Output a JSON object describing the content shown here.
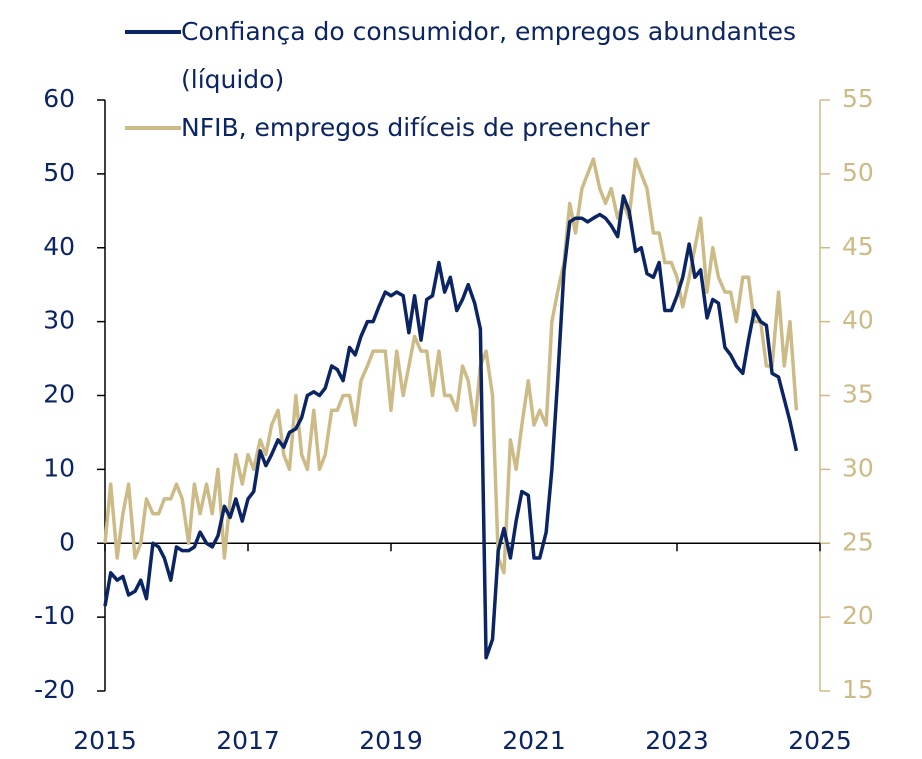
{
  "chart_data": {
    "type": "line",
    "x": [
      2015,
      2015.08,
      2015.17,
      2015.25,
      2015.33,
      2015.42,
      2015.5,
      2015.58,
      2015.67,
      2015.75,
      2015.83,
      2015.92,
      2016,
      2016.08,
      2016.17,
      2016.25,
      2016.33,
      2016.42,
      2016.5,
      2016.58,
      2016.67,
      2016.75,
      2016.83,
      2016.92,
      2017,
      2017.08,
      2017.17,
      2017.25,
      2017.33,
      2017.42,
      2017.5,
      2017.58,
      2017.67,
      2017.75,
      2017.83,
      2017.92,
      2018,
      2018.08,
      2018.17,
      2018.25,
      2018.33,
      2018.42,
      2018.5,
      2018.58,
      2018.67,
      2018.75,
      2018.83,
      2018.92,
      2019,
      2019.08,
      2019.17,
      2019.25,
      2019.33,
      2019.42,
      2019.5,
      2019.58,
      2019.67,
      2019.75,
      2019.83,
      2019.92,
      2020,
      2020.08,
      2020.17,
      2020.25,
      2020.33,
      2020.42,
      2020.5,
      2020.58,
      2020.67,
      2020.75,
      2020.83,
      2020.92,
      2021,
      2021.08,
      2021.17,
      2021.25,
      2021.33,
      2021.42,
      2021.5,
      2021.58,
      2021.67,
      2021.75,
      2021.83,
      2021.92,
      2022,
      2022.08,
      2022.17,
      2022.25,
      2022.33,
      2022.42,
      2022.5,
      2022.58,
      2022.67,
      2022.75,
      2022.83,
      2022.92,
      2023,
      2023.08,
      2023.17,
      2023.25,
      2023.33,
      2023.42,
      2023.5,
      2023.58,
      2023.67,
      2023.75,
      2023.83,
      2023.92,
      2024,
      2024.08,
      2024.17,
      2024.25,
      2024.33,
      2024.42,
      2024.5,
      2024.58,
      2024.67
    ],
    "series": [
      {
        "name": "Confiança do consumidor, empregos abundantes (líquido)",
        "color": "#0b2463",
        "axis": "y",
        "values": [
          -8.5,
          -4,
          -5,
          -4.5,
          -7,
          -6.5,
          -5,
          -7.5,
          0,
          -0.5,
          -2,
          -5,
          -0.5,
          -1,
          -1,
          -0.5,
          1.5,
          0,
          -0.5,
          1,
          5,
          3.5,
          6,
          3,
          6,
          7,
          12.5,
          10.5,
          12,
          14,
          13,
          15,
          15.5,
          17,
          20,
          20.5,
          20,
          21,
          24,
          23.5,
          22,
          26.5,
          25.5,
          28,
          30,
          30,
          32,
          34,
          33.5,
          34,
          33.5,
          28.5,
          33.5,
          27.5,
          33,
          33.5,
          38,
          34,
          36,
          31.5,
          33,
          35,
          32.5,
          29,
          -15.5,
          -13,
          -1,
          2,
          -2,
          3,
          7,
          6.5,
          -2,
          -2,
          1.5,
          10,
          22,
          37,
          43.5,
          44,
          44,
          43.5,
          44,
          44.5,
          44,
          43,
          41.5,
          47,
          45,
          39.5,
          40,
          36.5,
          36,
          38,
          31.5,
          31.5,
          33.5,
          36,
          40.5,
          36,
          37,
          30.5,
          33,
          32.5,
          26.5,
          25.5,
          24,
          23,
          27.5,
          31.5,
          30,
          29.5,
          23,
          22.5,
          19.5,
          16.5,
          12.5
        ]
      },
      {
        "name": "NFIB, empregos difíceis de preencher",
        "color": "#cdbb87",
        "axis": "y2",
        "values": [
          25,
          29,
          24,
          27,
          29,
          24,
          25,
          28,
          27,
          27,
          28,
          28,
          29,
          28,
          25,
          29,
          27,
          29,
          27,
          30,
          24,
          28,
          31,
          29,
          31,
          30,
          32,
          31,
          33,
          34,
          31,
          30,
          35,
          31,
          30,
          34,
          30,
          31,
          34,
          34,
          35,
          35,
          33,
          36,
          37,
          38,
          38,
          38,
          34,
          38,
          35,
          37,
          39,
          38,
          38,
          35,
          38,
          35,
          35,
          34,
          37,
          36,
          33,
          37,
          38,
          35,
          24,
          23,
          32,
          30,
          33,
          36,
          33,
          34,
          33,
          40,
          42,
          44,
          48,
          46,
          49,
          50,
          51,
          49,
          48,
          49,
          47,
          48,
          47,
          51,
          50,
          49,
          46,
          46,
          44,
          44,
          43,
          41,
          43,
          45,
          47,
          42,
          45,
          43,
          42,
          42,
          40,
          43,
          43,
          40,
          40,
          37,
          37,
          42,
          37,
          40,
          34
        ]
      }
    ],
    "xlim": [
      2015,
      2025
    ],
    "xticks": [
      2015,
      2017,
      2019,
      2021,
      2023,
      2025
    ],
    "ylim": [
      -20,
      60
    ],
    "yticks": [
      -20,
      -10,
      0,
      10,
      20,
      30,
      40,
      50,
      60
    ],
    "y2lim": [
      15,
      55
    ],
    "y2ticks": [
      15,
      20,
      25,
      30,
      35,
      40,
      45,
      50,
      55
    ],
    "grid": false,
    "legend": "top"
  }
}
